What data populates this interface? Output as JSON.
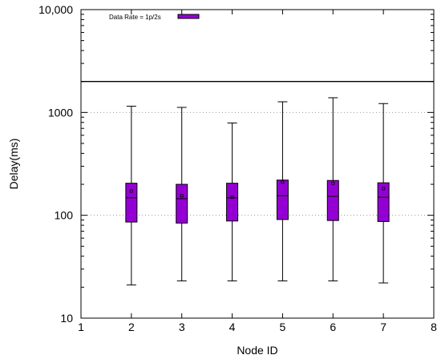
{
  "chart_data": {
    "type": "boxplot",
    "xlabel": "Node ID",
    "ylabel": "Delay(ms)",
    "xlim": [
      1,
      8
    ],
    "ylim": [
      10,
      10000
    ],
    "yscale": "log",
    "x_ticks": [
      "1",
      "2",
      "3",
      "4",
      "5",
      "6",
      "7",
      "8"
    ],
    "y_ticks": [
      {
        "value": 10,
        "label": "10"
      },
      {
        "value": 100,
        "label": "100"
      },
      {
        "value": 1000,
        "label": "1000"
      },
      {
        "value": 10000,
        "label": "10,000"
      }
    ],
    "y_gridlines": [
      100,
      1000
    ],
    "grid": "dotted horizontal",
    "legend": {
      "entries": [
        {
          "label": "Data Rate = 1p/2s",
          "color": "#9400D3"
        }
      ],
      "position": "top-left"
    },
    "series": [
      {
        "name": "Data Rate = 1p/2s",
        "color": "#9400D3",
        "boxes": [
          {
            "x": 2,
            "min": 21,
            "q1": 86,
            "median": 148,
            "q3": 205,
            "max": 1150,
            "mean": 172
          },
          {
            "x": 3,
            "min": 23,
            "q1": 84,
            "median": 145,
            "q3": 200,
            "max": 1120,
            "mean": 155
          },
          {
            "x": 4,
            "min": 23,
            "q1": 88,
            "median": 148,
            "q3": 205,
            "max": 790,
            "mean": 150
          },
          {
            "x": 5,
            "min": 23,
            "q1": 91,
            "median": 155,
            "q3": 220,
            "max": 1270,
            "mean": 210
          },
          {
            "x": 6,
            "min": 23,
            "q1": 89,
            "median": 153,
            "q3": 218,
            "max": 1390,
            "mean": 205
          },
          {
            "x": 7,
            "min": 22,
            "q1": 87,
            "median": 150,
            "q3": 207,
            "max": 1220,
            "mean": 182
          }
        ]
      }
    ],
    "reference_line": {
      "y": 2000,
      "style": "solid"
    }
  }
}
